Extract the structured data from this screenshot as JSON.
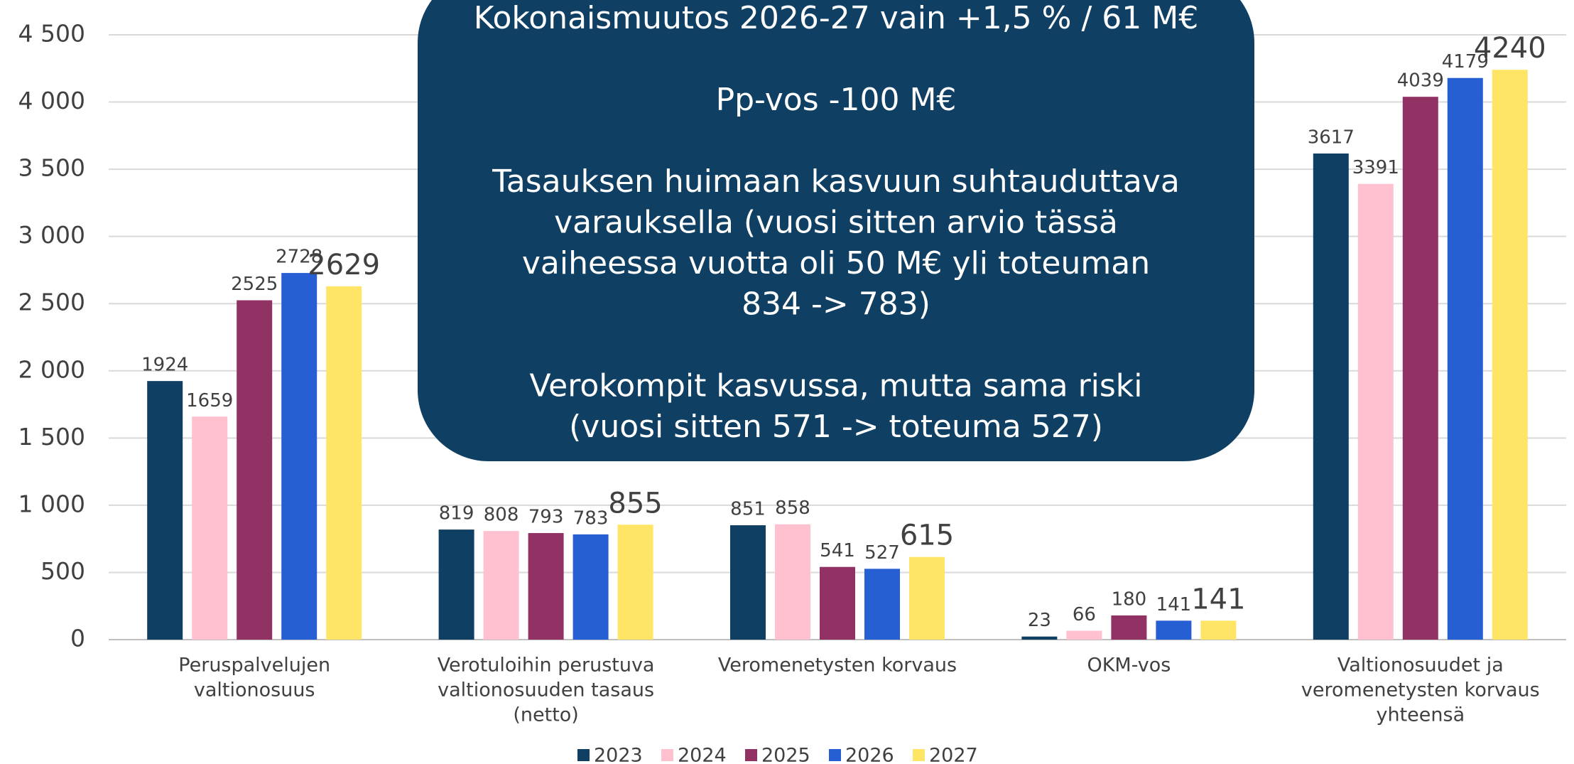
{
  "chart_data": {
    "type": "bar",
    "categories": [
      [
        "Peruspalvelujen",
        "valtionosuus"
      ],
      [
        "Verotuloihin perustuva",
        "valtionosuuden tasaus",
        "(netto)"
      ],
      [
        "Veromenetysten korvaus"
      ],
      [
        "OKM-vos"
      ],
      [
        "Valtionosuudet ja",
        "veromenetysten korvaus",
        "yhteensä"
      ]
    ],
    "series": [
      {
        "name": "2023",
        "color": "#0f3f63",
        "values": [
          1924,
          819,
          851,
          23,
          3617
        ]
      },
      {
        "name": "2024",
        "color": "#ffc0d0",
        "values": [
          1659,
          808,
          858,
          66,
          3391
        ]
      },
      {
        "name": "2025",
        "color": "#923264",
        "values": [
          2525,
          793,
          541,
          180,
          4039
        ]
      },
      {
        "name": "2026",
        "color": "#265fd4",
        "values": [
          2728,
          783,
          527,
          141,
          4179
        ]
      },
      {
        "name": "2027",
        "color": "#ffe566",
        "values": [
          2629,
          855,
          615,
          141,
          4240
        ]
      }
    ],
    "ylim": [
      0,
      4500
    ],
    "yticks": [
      0,
      500,
      {
        "value": 1000,
        "label": "1 000"
      },
      {
        "value": 1500,
        "label": "1 500"
      },
      {
        "value": 2000,
        "label": "2 000"
      },
      {
        "value": 2500,
        "label": "2 500"
      },
      {
        "value": 3000,
        "label": "3 000"
      },
      {
        "value": 3500,
        "label": "3 500"
      },
      {
        "value": 4000,
        "label": "4 000"
      },
      {
        "value": 4500,
        "label": "4 500"
      }
    ],
    "grid": true,
    "legend": "bottom",
    "annotation": [
      [
        "Kokonaismuutos 2026-27 vain +1,5 % / 61 M€"
      ],
      [
        "Pp-vos -100 M€"
      ],
      [
        "Tasauksen huimaan kasvuun suhtauduttava",
        "varauksella (vuosi sitten arvio tässä",
        "vaiheessa vuotta oli 50 M€ yli toteuman",
        "834 -> 783)"
      ],
      [
        "Verokompit kasvussa, mutta sama riski",
        "(vuosi sitten 571 -> toteuma 527)"
      ]
    ]
  }
}
